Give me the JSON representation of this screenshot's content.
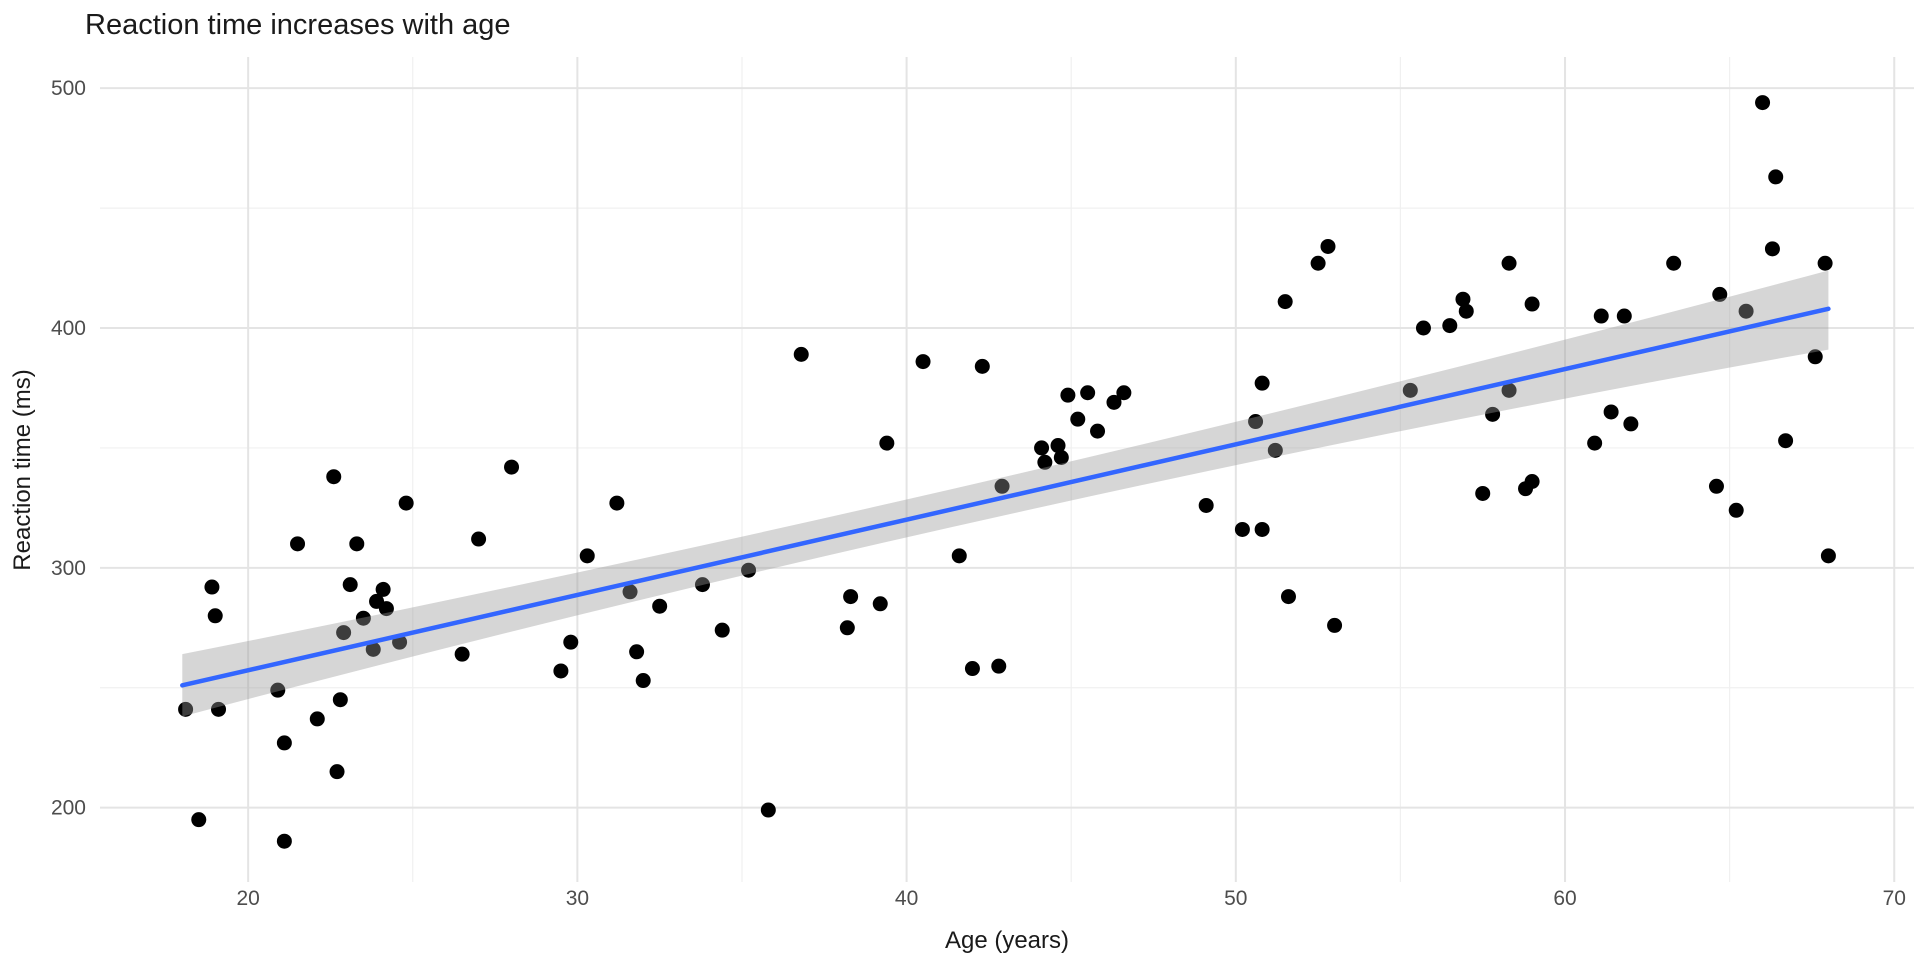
{
  "chart_data": {
    "type": "scatter",
    "title": "Reaction time increases with age",
    "xlabel": "Age (years)",
    "ylabel": "Reaction time (ms)",
    "x_ticks": [
      20,
      30,
      40,
      50,
      60,
      70
    ],
    "x_minor_ticks": [
      25,
      35,
      45,
      55,
      65
    ],
    "y_ticks": [
      200,
      300,
      400,
      500
    ],
    "y_minor_ticks": [
      250,
      350,
      450
    ],
    "xlim": [
      15.5,
      70.6
    ],
    "ylim": [
      169,
      513
    ],
    "grid": true,
    "legend_position": "none",
    "series": [
      {
        "name": "observations",
        "points": [
          [
            18.1,
            241
          ],
          [
            19.1,
            241
          ],
          [
            18.5,
            195
          ],
          [
            18.9,
            292
          ],
          [
            19.0,
            280
          ],
          [
            20.9,
            249
          ],
          [
            21.1,
            186
          ],
          [
            21.1,
            227
          ],
          [
            21.5,
            310
          ],
          [
            22.1,
            237
          ],
          [
            22.7,
            215
          ],
          [
            22.8,
            245
          ],
          [
            22.6,
            338
          ],
          [
            23.1,
            293
          ],
          [
            23.3,
            310
          ],
          [
            22.9,
            273
          ],
          [
            23.5,
            279
          ],
          [
            23.8,
            266
          ],
          [
            23.9,
            286
          ],
          [
            24.1,
            291
          ],
          [
            24.2,
            283
          ],
          [
            24.6,
            269
          ],
          [
            24.8,
            327
          ],
          [
            26.5,
            264
          ],
          [
            27.0,
            312
          ],
          [
            28.0,
            342
          ],
          [
            29.5,
            257
          ],
          [
            29.8,
            269
          ],
          [
            30.3,
            305
          ],
          [
            31.2,
            327
          ],
          [
            31.6,
            290
          ],
          [
            31.8,
            265
          ],
          [
            32.0,
            253
          ],
          [
            32.5,
            284
          ],
          [
            33.8,
            293
          ],
          [
            34.4,
            274
          ],
          [
            35.2,
            299
          ],
          [
            35.8,
            199
          ],
          [
            36.8,
            389
          ],
          [
            38.3,
            288
          ],
          [
            39.2,
            285
          ],
          [
            38.2,
            275
          ],
          [
            39.4,
            352
          ],
          [
            40.5,
            386
          ],
          [
            41.6,
            305
          ],
          [
            42.0,
            258
          ],
          [
            42.8,
            259
          ],
          [
            42.3,
            384
          ],
          [
            42.9,
            334
          ],
          [
            44.1,
            350
          ],
          [
            44.2,
            344
          ],
          [
            44.6,
            351
          ],
          [
            44.7,
            346
          ],
          [
            44.9,
            372
          ],
          [
            45.2,
            362
          ],
          [
            45.5,
            373
          ],
          [
            45.8,
            357
          ],
          [
            46.3,
            369
          ],
          [
            46.6,
            373
          ],
          [
            49.1,
            326
          ],
          [
            50.2,
            316
          ],
          [
            50.8,
            316
          ],
          [
            50.6,
            361
          ],
          [
            50.8,
            377
          ],
          [
            51.2,
            349
          ],
          [
            51.5,
            411
          ],
          [
            51.6,
            288
          ],
          [
            52.5,
            427
          ],
          [
            52.8,
            434
          ],
          [
            53.0,
            276
          ],
          [
            55.3,
            374
          ],
          [
            55.7,
            400
          ],
          [
            56.5,
            401
          ],
          [
            56.9,
            412
          ],
          [
            57.0,
            407
          ],
          [
            57.5,
            331
          ],
          [
            57.8,
            364
          ],
          [
            58.3,
            427
          ],
          [
            58.3,
            374
          ],
          [
            58.8,
            333
          ],
          [
            59.0,
            336
          ],
          [
            59.0,
            410
          ],
          [
            60.9,
            352
          ],
          [
            61.1,
            405
          ],
          [
            61.4,
            365
          ],
          [
            61.8,
            405
          ],
          [
            62.0,
            360
          ],
          [
            63.3,
            427
          ],
          [
            64.6,
            334
          ],
          [
            64.7,
            414
          ],
          [
            65.2,
            324
          ],
          [
            65.5,
            407
          ],
          [
            66.0,
            494
          ],
          [
            66.3,
            433
          ],
          [
            66.4,
            463
          ],
          [
            66.7,
            353
          ],
          [
            67.6,
            388
          ],
          [
            67.9,
            427
          ],
          [
            68.0,
            305
          ]
        ]
      }
    ],
    "regression_line": {
      "x": [
        18,
        68
      ],
      "y": [
        251,
        408
      ]
    },
    "confidence_band": {
      "x": [
        18,
        43,
        68
      ],
      "upper": [
        264,
        338,
        424
      ],
      "lower": [
        238,
        322,
        391
      ]
    },
    "colors": {
      "point": "#000000",
      "line": "#3366FF",
      "band": "#999999",
      "band_opacity": 0.4,
      "grid_major": "#E4E4E4",
      "grid_minor": "#F0F0F0",
      "tick_label": "#4d4d4d",
      "text": "#1a1a1a",
      "background": "#FFFFFF"
    }
  }
}
